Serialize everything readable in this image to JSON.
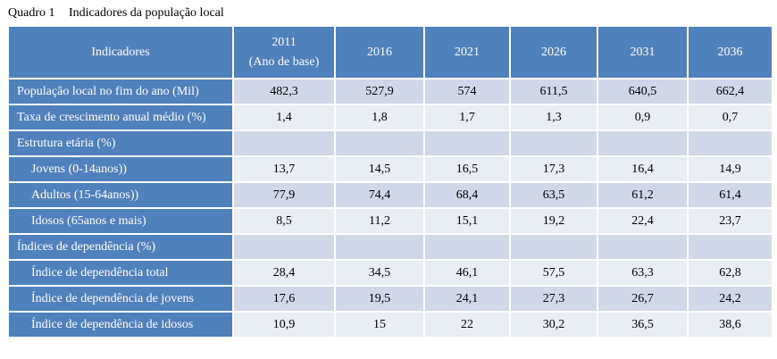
{
  "caption": {
    "number": "Quadro 1",
    "title": "Indicadores da população local"
  },
  "header": {
    "indicator_label": "Indicadores",
    "base_year": "2011",
    "base_year_note": "(Ano de base)",
    "years": [
      "2016",
      "2021",
      "2026",
      "2031",
      "2036"
    ]
  },
  "rows": [
    {
      "label": "População local no fim do ano (Mil)",
      "indent": false,
      "values": [
        "482,3",
        "527,9",
        "574",
        "611,5",
        "640,5",
        "662,4"
      ]
    },
    {
      "label": "Taxa de crescimento anual médio (%)",
      "indent": false,
      "values": [
        "1,4",
        "1,8",
        "1,7",
        "1,3",
        "0,9",
        "0,7"
      ]
    },
    {
      "label": "Estrutura etária (%)",
      "indent": false,
      "values": [
        "",
        "",
        "",
        "",
        "",
        ""
      ]
    },
    {
      "label": "Jovens (0-14anos))",
      "indent": true,
      "values": [
        "13,7",
        "14,5",
        "16,5",
        "17,3",
        "16,4",
        "14,9"
      ]
    },
    {
      "label": "Adultos (15-64anos))",
      "indent": true,
      "values": [
        "77,9",
        "74,4",
        "68,4",
        "63,5",
        "61,2",
        "61,4"
      ]
    },
    {
      "label": "Idosos (65anos e mais)",
      "indent": true,
      "values": [
        "8,5",
        "11,2",
        "15,1",
        "19,2",
        "22,4",
        "23,7"
      ]
    },
    {
      "label": "Índices de dependência (%)",
      "indent": false,
      "values": [
        "",
        "",
        "",
        "",
        "",
        ""
      ]
    },
    {
      "label": "Índice de dependência total",
      "indent": true,
      "values": [
        "28,4",
        "34,5",
        "46,1",
        "57,5",
        "63,3",
        "62,8"
      ]
    },
    {
      "label": "Índice de dependência de jovens",
      "indent": true,
      "values": [
        "17,6",
        "19,5",
        "24,1",
        "27,3",
        "26,7",
        "24,2"
      ]
    },
    {
      "label": "Índice de dependência de idosos",
      "indent": true,
      "values": [
        "10,9",
        "15",
        "22",
        "30,2",
        "36,5",
        "38,6"
      ]
    }
  ]
}
